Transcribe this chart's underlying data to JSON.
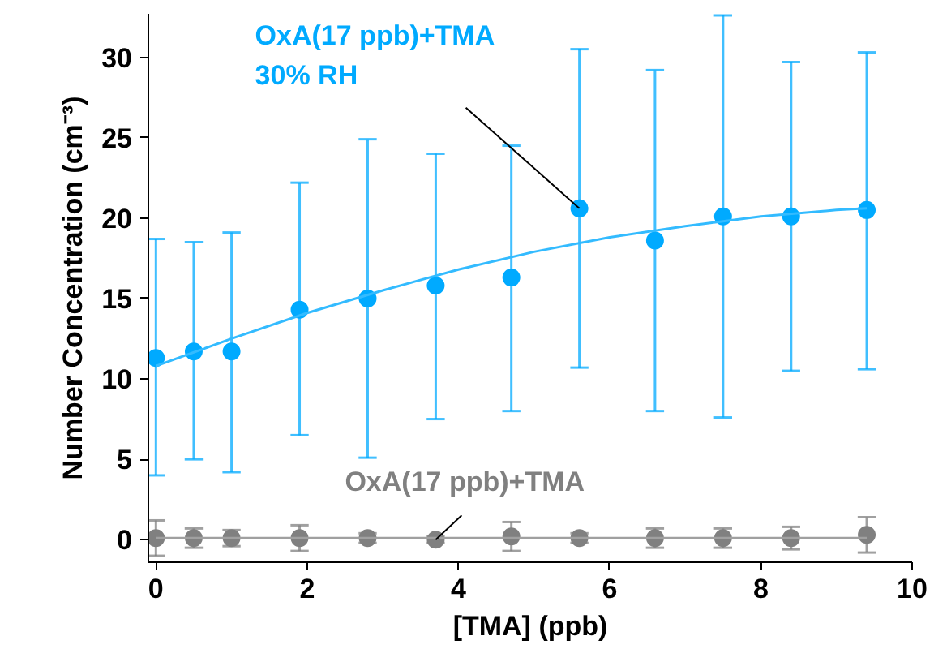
{
  "chart_data": {
    "type": "scatter",
    "xlabel": "[TMA] (ppb)",
    "ylabel": "Number Concentration (cm⁻³)",
    "xlim": [
      -0.1,
      10
    ],
    "ylim": [
      -1.4,
      32.7
    ],
    "xticks": [
      0,
      2,
      4,
      6,
      8,
      10
    ],
    "yticks": [
      0,
      5,
      10,
      15,
      20,
      25,
      30
    ],
    "grid": false,
    "marker": "circle",
    "x": [
      0,
      0.5,
      1,
      1.9,
      2.8,
      3.7,
      4.7,
      5.6,
      6.6,
      7.5,
      8.4,
      9.4
    ],
    "series": [
      {
        "color": "#00aaff",
        "values": [
          11.3,
          11.7,
          11.7,
          14.3,
          15.0,
          15.8,
          16.3,
          20.6,
          18.6,
          20.1,
          20.1,
          20.5
        ],
        "errors": [
          [
            4.0,
            18.7
          ],
          [
            5.0,
            18.5
          ],
          [
            4.2,
            19.1
          ],
          [
            6.5,
            22.2
          ],
          [
            5.1,
            24.9
          ],
          [
            7.5,
            24.0
          ],
          [
            8.0,
            24.5
          ],
          [
            10.7,
            30.5
          ],
          [
            8.0,
            29.2
          ],
          [
            7.6,
            32.6
          ],
          [
            10.5,
            29.7
          ],
          [
            10.6,
            30.3
          ]
        ]
      },
      {
        "color": "#808080",
        "values": [
          0.1,
          0.1,
          0.1,
          0.1,
          0.1,
          0.0,
          0.2,
          0.1,
          0.1,
          0.1,
          0.1,
          0.3
        ],
        "errors": [
          1.1,
          0.6,
          0.5,
          0.8,
          0.3,
          0.2,
          0.9,
          0.3,
          0.6,
          0.6,
          0.7,
          1.1
        ]
      },
      {
        "type": "line",
        "marker": "none",
        "color": "#33bbff",
        "x": [
          0,
          1,
          2,
          3,
          4,
          5,
          6,
          7,
          8,
          9,
          9.4
        ],
        "values": [
          10.8,
          12.5,
          14.1,
          15.5,
          16.8,
          17.9,
          18.8,
          19.5,
          20.1,
          20.5,
          20.6
        ]
      },
      {
        "type": "line",
        "marker": "none",
        "color": "#a0a0a0",
        "x": [
          0,
          9.4
        ],
        "values": [
          0.1,
          0.1
        ]
      }
    ],
    "annotations": [
      {
        "text": "OxA(17 ppb)+TMA\n30% RH",
        "x": 5.6,
        "y": 20.6
      },
      {
        "text": "OxA(17 ppb)+TMA",
        "x": 3.7,
        "y": 0.0
      }
    ]
  }
}
